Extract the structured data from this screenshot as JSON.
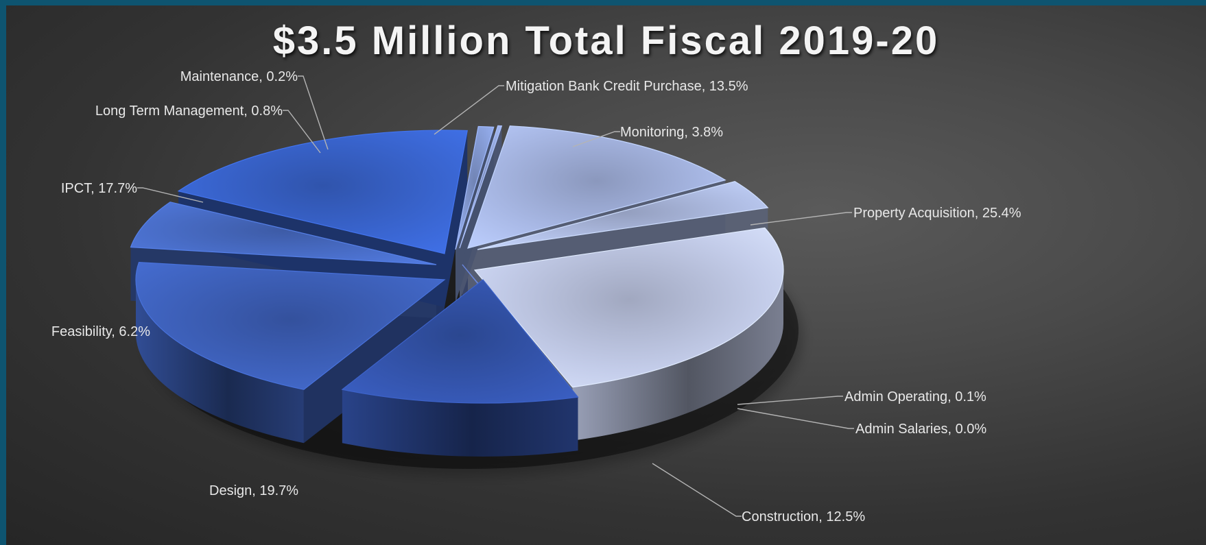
{
  "chart_data": {
    "type": "pie",
    "title": "$3.5 Million Total Fiscal 2019-20",
    "slices": [
      {
        "name": "Property Acquisition",
        "value": 25.4,
        "label": "Property Acquisition, 25.4%",
        "color": "#c4cdea"
      },
      {
        "name": "Admin Operating",
        "value": 0.1,
        "label": "Admin Operating, 0.1%",
        "color": "#6f86c9"
      },
      {
        "name": "Admin Salaries",
        "value": 0.0,
        "label": "Admin Salaries, 0.0%",
        "color": "#5a74c0"
      },
      {
        "name": "Construction",
        "value": 12.5,
        "label": "Construction, 12.5%",
        "color": "#3556b0"
      },
      {
        "name": "Design",
        "value": 19.7,
        "label": "Design, 19.7%",
        "color": "#3f63bf"
      },
      {
        "name": "Feasibility",
        "value": 6.2,
        "label": "Feasibility, 6.2%",
        "color": "#4a6fcb"
      },
      {
        "name": "IPCT",
        "value": 17.7,
        "label": "IPCT, 17.7%",
        "color": "#3a66d2"
      },
      {
        "name": "Long Term Management",
        "value": 0.8,
        "label": "Long Term Management, 0.8%",
        "color": "#8aa1dc"
      },
      {
        "name": "Maintenance",
        "value": 0.2,
        "label": "Maintenance, 0.2%",
        "color": "#96aadf"
      },
      {
        "name": "Mitigation Bank Credit Purchase",
        "value": 13.5,
        "label": "Mitigation Bank Credit Purchase, 13.5%",
        "color": "#a9b9e6"
      },
      {
        "name": "Monitoring",
        "value": 3.8,
        "label": "Monitoring, 3.8%",
        "color": "#b3c1e8"
      }
    ],
    "legend": "data labels outside slices",
    "style": "3d exploded"
  }
}
